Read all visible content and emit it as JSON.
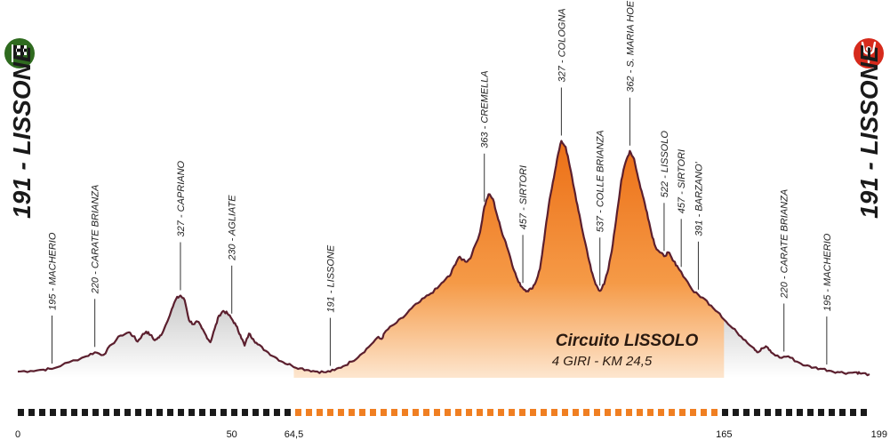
{
  "chart_data": {
    "type": "area",
    "start_label": "191 - LISSONE",
    "finish_label": "191 - LISSONE",
    "x_ticks": [
      "0",
      "50",
      "64,5",
      "165",
      "199"
    ],
    "x_range": [
      0,
      199
    ],
    "circuit": {
      "title": "Circuito LISSOLO",
      "subtitle": "4 GIRI - KM 24,5",
      "km_start": 64.5,
      "km_end": 165,
      "color": "#f07f22"
    },
    "profile": [
      [
        0,
        191
      ],
      [
        3,
        192
      ],
      [
        6,
        194
      ],
      [
        8,
        195
      ],
      [
        12,
        205
      ],
      [
        16,
        214
      ],
      [
        18,
        220
      ],
      [
        20,
        216
      ],
      [
        22,
        232
      ],
      [
        24,
        245
      ],
      [
        26,
        250
      ],
      [
        27,
        244
      ],
      [
        28,
        236
      ],
      [
        29,
        245
      ],
      [
        30,
        251
      ],
      [
        31,
        246
      ],
      [
        32,
        238
      ],
      [
        33,
        242
      ],
      [
        34,
        252
      ],
      [
        36,
        285
      ],
      [
        37,
        300
      ],
      [
        38,
        305
      ],
      [
        39,
        298
      ],
      [
        40,
        268
      ],
      [
        41,
        262
      ],
      [
        42,
        266
      ],
      [
        43,
        256
      ],
      [
        44,
        245
      ],
      [
        45,
        235
      ],
      [
        46,
        255
      ],
      [
        47,
        275
      ],
      [
        48,
        282
      ],
      [
        49,
        278
      ],
      [
        50,
        270
      ],
      [
        51,
        260
      ],
      [
        52,
        246
      ],
      [
        53,
        230
      ],
      [
        54,
        248
      ],
      [
        55,
        240
      ],
      [
        56,
        232
      ],
      [
        58,
        222
      ],
      [
        60,
        213
      ],
      [
        62,
        205
      ],
      [
        64,
        200
      ],
      [
        66,
        196
      ],
      [
        68,
        193
      ],
      [
        70,
        191
      ],
      [
        72,
        190
      ],
      [
        74,
        193
      ],
      [
        76,
        199
      ],
      [
        78,
        206
      ],
      [
        80,
        216
      ],
      [
        82,
        228
      ],
      [
        84,
        242
      ],
      [
        85,
        240
      ],
      [
        86,
        252
      ],
      [
        88,
        262
      ],
      [
        90,
        272
      ],
      [
        92,
        286
      ],
      [
        94,
        296
      ],
      [
        96,
        306
      ],
      [
        98,
        316
      ],
      [
        100,
        330
      ],
      [
        101,
        335
      ],
      [
        102,
        350
      ],
      [
        103,
        362
      ],
      [
        104,
        359
      ],
      [
        105,
        356
      ],
      [
        106,
        365
      ],
      [
        108,
        400
      ],
      [
        109,
        438
      ],
      [
        110,
        457
      ],
      [
        111,
        450
      ],
      [
        112,
        425
      ],
      [
        113,
        402
      ],
      [
        114,
        385
      ],
      [
        115,
        364
      ],
      [
        116,
        342
      ],
      [
        117,
        325
      ],
      [
        118,
        316
      ],
      [
        119,
        312
      ],
      [
        120,
        315
      ],
      [
        121,
        325
      ],
      [
        122,
        345
      ],
      [
        123,
        390
      ],
      [
        124,
        438
      ],
      [
        125,
        475
      ],
      [
        126,
        510
      ],
      [
        127,
        537
      ],
      [
        128,
        528
      ],
      [
        129,
        498
      ],
      [
        130,
        465
      ],
      [
        131,
        432
      ],
      [
        132,
        400
      ],
      [
        133,
        372
      ],
      [
        134,
        342
      ],
      [
        135,
        322
      ],
      [
        136,
        312
      ],
      [
        137,
        322
      ],
      [
        138,
        345
      ],
      [
        139,
        382
      ],
      [
        140,
        430
      ],
      [
        141,
        478
      ],
      [
        142,
        505
      ],
      [
        143,
        522
      ],
      [
        144,
        510
      ],
      [
        145,
        480
      ],
      [
        146,
        455
      ],
      [
        147,
        430
      ],
      [
        148,
        400
      ],
      [
        149,
        378
      ],
      [
        150,
        370
      ],
      [
        151,
        364
      ],
      [
        152,
        370
      ],
      [
        153,
        358
      ],
      [
        154,
        350
      ],
      [
        156,
        330
      ],
      [
        158,
        310
      ],
      [
        160,
        302
      ],
      [
        162,
        290
      ],
      [
        164,
        278
      ],
      [
        166,
        262
      ],
      [
        168,
        250
      ],
      [
        170,
        238
      ],
      [
        172,
        226
      ],
      [
        173,
        220
      ],
      [
        174,
        226
      ],
      [
        175,
        228
      ],
      [
        176,
        220
      ],
      [
        178,
        212
      ],
      [
        180,
        214
      ],
      [
        182,
        206
      ],
      [
        184,
        200
      ],
      [
        186,
        197
      ],
      [
        188,
        195
      ],
      [
        190,
        192
      ],
      [
        192,
        190
      ],
      [
        194,
        189
      ],
      [
        196,
        190
      ],
      [
        197,
        188
      ],
      [
        199,
        187
      ]
    ],
    "waypoints": [
      {
        "km": 8,
        "label": "195 - MACHERIO"
      },
      {
        "km": 18,
        "label": "220 - CARATE BRIANZA"
      },
      {
        "km": 38,
        "label": "327 - CAPRIANO"
      },
      {
        "km": 50,
        "label": "230 - AGLIATE"
      },
      {
        "km": 73,
        "label": "191 - LISSONE"
      },
      {
        "km": 109,
        "label": "363 - CREMELLA"
      },
      {
        "km": 118,
        "label": "457 - SIRTORI"
      },
      {
        "km": 127,
        "label": "327 - COLOGNA"
      },
      {
        "km": 136,
        "label": "537 - COLLE BRIANZA"
      },
      {
        "km": 143,
        "label": "362 - S. MARIA HOE'"
      },
      {
        "km": 151,
        "label": "522 - LISSOLO"
      },
      {
        "km": 155,
        "label": "457 - SIRTORI"
      },
      {
        "km": 159,
        "label": "391 - BARZANO'"
      },
      {
        "km": 179,
        "label": "220 - CARATE BRIANZA"
      },
      {
        "km": 189,
        "label": "195 - MACHERIO"
      }
    ],
    "scale_colors": {
      "dark": "#1a1a1a",
      "circuit": "#f07f22"
    },
    "fill_colors": {
      "grey_top": "#8a8a8a",
      "grey_bottom": "#ffffff",
      "outline": "#5b1f2e"
    },
    "icons": {
      "start": "checkered-flag-icon",
      "finish": "finish-arms-icon"
    },
    "icon_colors": {
      "start": "#2f6b1f",
      "finish": "#d62a1c"
    }
  }
}
